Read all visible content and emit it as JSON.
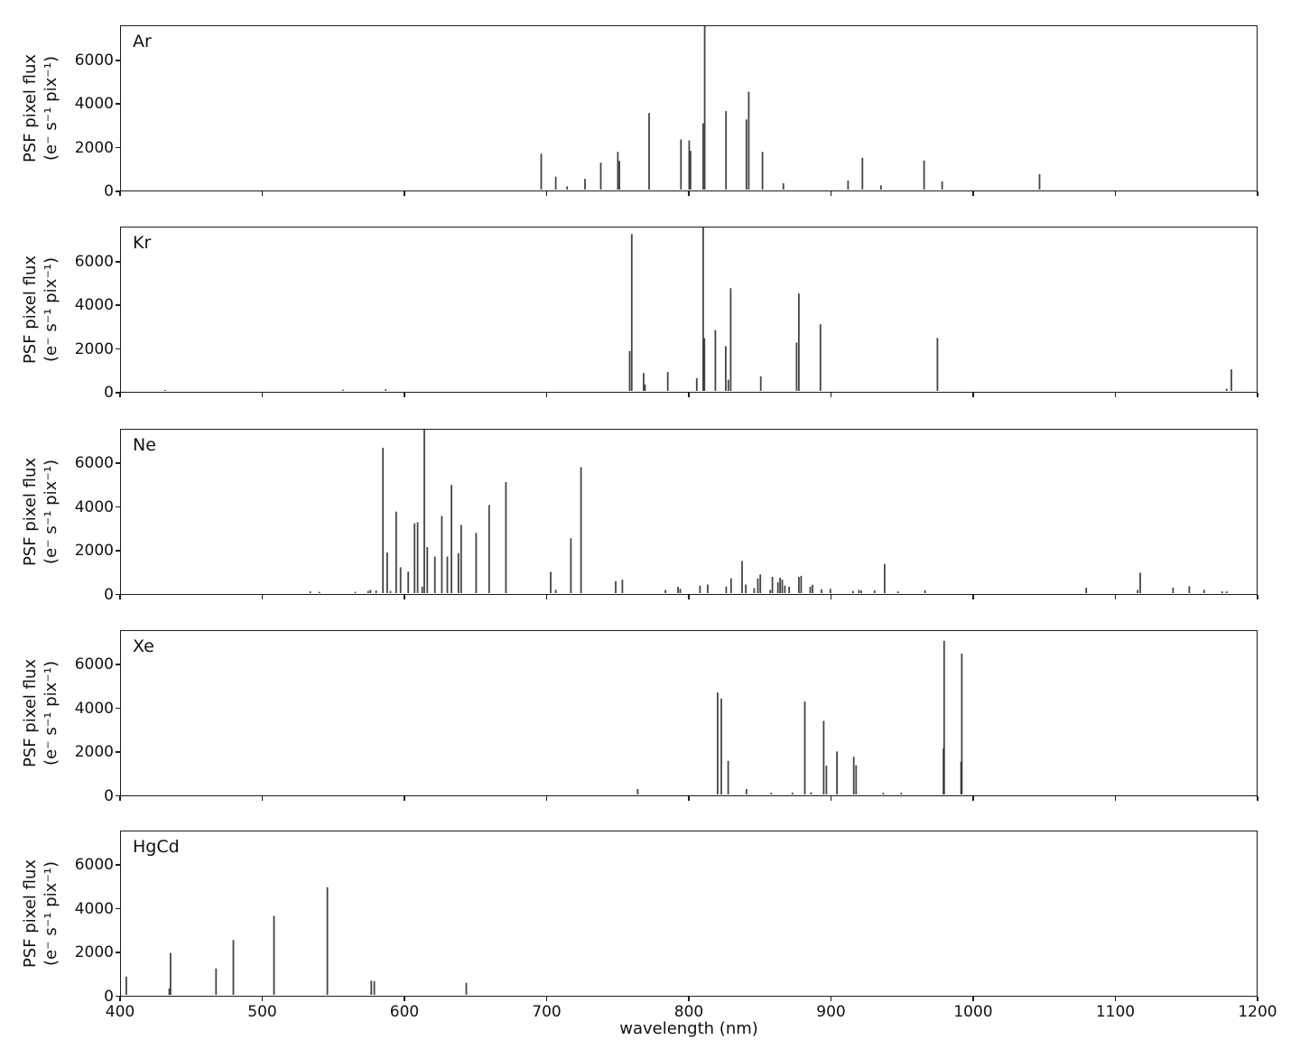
{
  "chart_data": {
    "type": "bar",
    "subtype": "emission-line-spectra",
    "title": "",
    "xlabel": "wavelength (nm)",
    "ylabel_line1": "PSF pixel flux",
    "ylabel_line2": "(e⁻ s⁻¹ pix⁻¹)",
    "x_ticks": [
      "400",
      "500",
      "600",
      "700",
      "800",
      "900",
      "1000",
      "1100",
      "1200"
    ],
    "y_ticks": [
      "0",
      "2000",
      "4000",
      "6000"
    ],
    "xlim": [
      400,
      1200
    ],
    "ylim": [
      0,
      7600
    ],
    "grid": false,
    "legend": false,
    "line_color": "#2b2b2b",
    "panels": [
      {
        "label": "Ar",
        "lines": [
          [
            696.5,
            1670
          ],
          [
            706.7,
            600
          ],
          [
            714.7,
            150
          ],
          [
            727.3,
            500
          ],
          [
            738.4,
            1250
          ],
          [
            750.4,
            1750
          ],
          [
            751.5,
            1330
          ],
          [
            772.4,
            3560
          ],
          [
            794.8,
            2330
          ],
          [
            800.6,
            2290
          ],
          [
            801.5,
            1800
          ],
          [
            810.4,
            3080
          ],
          [
            811.5,
            7800
          ],
          [
            826.5,
            3650
          ],
          [
            840.8,
            3260
          ],
          [
            842.5,
            4550
          ],
          [
            852.1,
            1750
          ],
          [
            866.8,
            300
          ],
          [
            912.3,
            420
          ],
          [
            922.4,
            1480
          ],
          [
            935.4,
            200
          ],
          [
            965.8,
            1350
          ],
          [
            978.5,
            380
          ],
          [
            1047.0,
            720
          ]
        ]
      },
      {
        "label": "Kr",
        "lines": [
          [
            432.0,
            40
          ],
          [
            557.0,
            60
          ],
          [
            587.1,
            70
          ],
          [
            758.7,
            1850
          ],
          [
            760.2,
            7290
          ],
          [
            768.5,
            830
          ],
          [
            769.5,
            300
          ],
          [
            785.5,
            880
          ],
          [
            805.9,
            590
          ],
          [
            810.4,
            7800
          ],
          [
            811.3,
            2450
          ],
          [
            819.0,
            2830
          ],
          [
            826.3,
            2080
          ],
          [
            828.1,
            520
          ],
          [
            829.8,
            4780
          ],
          [
            850.9,
            670
          ],
          [
            876.1,
            2250
          ],
          [
            877.7,
            4530
          ],
          [
            892.9,
            3100
          ],
          [
            975.2,
            2460
          ],
          [
            1178.6,
            100
          ],
          [
            1181.9,
            1000
          ]
        ]
      },
      {
        "label": "Ne",
        "lines": [
          [
            534.1,
            80
          ],
          [
            540.5,
            60
          ],
          [
            565.7,
            60
          ],
          [
            574.8,
            100
          ],
          [
            576.4,
            150
          ],
          [
            580.4,
            120
          ],
          [
            585.2,
            6760
          ],
          [
            588.2,
            1890
          ],
          [
            590.5,
            100
          ],
          [
            594.5,
            3790
          ],
          [
            597.6,
            1200
          ],
          [
            603.0,
            1000
          ],
          [
            607.4,
            3240
          ],
          [
            609.6,
            3300
          ],
          [
            612.8,
            300
          ],
          [
            614.3,
            7800
          ],
          [
            616.4,
            2140
          ],
          [
            621.7,
            1700
          ],
          [
            626.6,
            3590
          ],
          [
            630.5,
            1700
          ],
          [
            633.4,
            5030
          ],
          [
            638.3,
            1860
          ],
          [
            640.2,
            3170
          ],
          [
            650.7,
            2800
          ],
          [
            659.9,
            4100
          ],
          [
            671.7,
            5170
          ],
          [
            703.2,
            990
          ],
          [
            706.7,
            150
          ],
          [
            717.4,
            2550
          ],
          [
            724.5,
            5860
          ],
          [
            748.9,
            560
          ],
          [
            753.6,
            620
          ],
          [
            783.9,
            150
          ],
          [
            792.7,
            300
          ],
          [
            794.3,
            200
          ],
          [
            808.2,
            350
          ],
          [
            813.6,
            400
          ],
          [
            826.6,
            300
          ],
          [
            830.0,
            690
          ],
          [
            837.8,
            1500
          ],
          [
            840.4,
            400
          ],
          [
            846.3,
            230
          ],
          [
            848.9,
            690
          ],
          [
            850.6,
            870
          ],
          [
            857.6,
            150
          ],
          [
            859.1,
            760
          ],
          [
            863.0,
            500
          ],
          [
            864.5,
            720
          ],
          [
            866.0,
            620
          ],
          [
            867.9,
            350
          ],
          [
            870.9,
            300
          ],
          [
            877.7,
            750
          ],
          [
            879.3,
            800
          ],
          [
            885.7,
            300
          ],
          [
            887.3,
            390
          ],
          [
            893.6,
            180
          ],
          [
            899.9,
            200
          ],
          [
            915.8,
            100
          ],
          [
            920.0,
            150
          ],
          [
            921.6,
            120
          ],
          [
            931.0,
            120
          ],
          [
            938.0,
            1350
          ],
          [
            947.5,
            80
          ],
          [
            966.5,
            130
          ],
          [
            1079.8,
            250
          ],
          [
            1116.0,
            150
          ],
          [
            1117.8,
            950
          ],
          [
            1140.9,
            250
          ],
          [
            1152.3,
            320
          ],
          [
            1162.7,
            150
          ],
          [
            1175.4,
            80
          ],
          [
            1178.6,
            80
          ]
        ]
      },
      {
        "label": "Xe",
        "lines": [
          [
            764.4,
            250
          ],
          [
            820.6,
            4740
          ],
          [
            823.2,
            4460
          ],
          [
            828.0,
            1560
          ],
          [
            840.9,
            250
          ],
          [
            858.3,
            80
          ],
          [
            873.2,
            80
          ],
          [
            881.9,
            4320
          ],
          [
            886.3,
            100
          ],
          [
            895.2,
            3420
          ],
          [
            897.1,
            1340
          ],
          [
            904.5,
            2000
          ],
          [
            916.3,
            1750
          ],
          [
            918.0,
            1350
          ],
          [
            937.1,
            80
          ],
          [
            949.8,
            80
          ],
          [
            979.4,
            2140
          ],
          [
            979.9,
            7150
          ],
          [
            991.8,
            1520
          ],
          [
            992.3,
            6550
          ]
        ]
      },
      {
        "label": "HgCd",
        "lines": [
          [
            404.7,
            850
          ],
          [
            434.9,
            300
          ],
          [
            435.8,
            1950
          ],
          [
            467.8,
            1230
          ],
          [
            480.0,
            2550
          ],
          [
            508.6,
            3680
          ],
          [
            546.1,
            5010
          ],
          [
            577.0,
            660
          ],
          [
            579.1,
            640
          ],
          [
            643.8,
            560
          ]
        ]
      }
    ]
  }
}
